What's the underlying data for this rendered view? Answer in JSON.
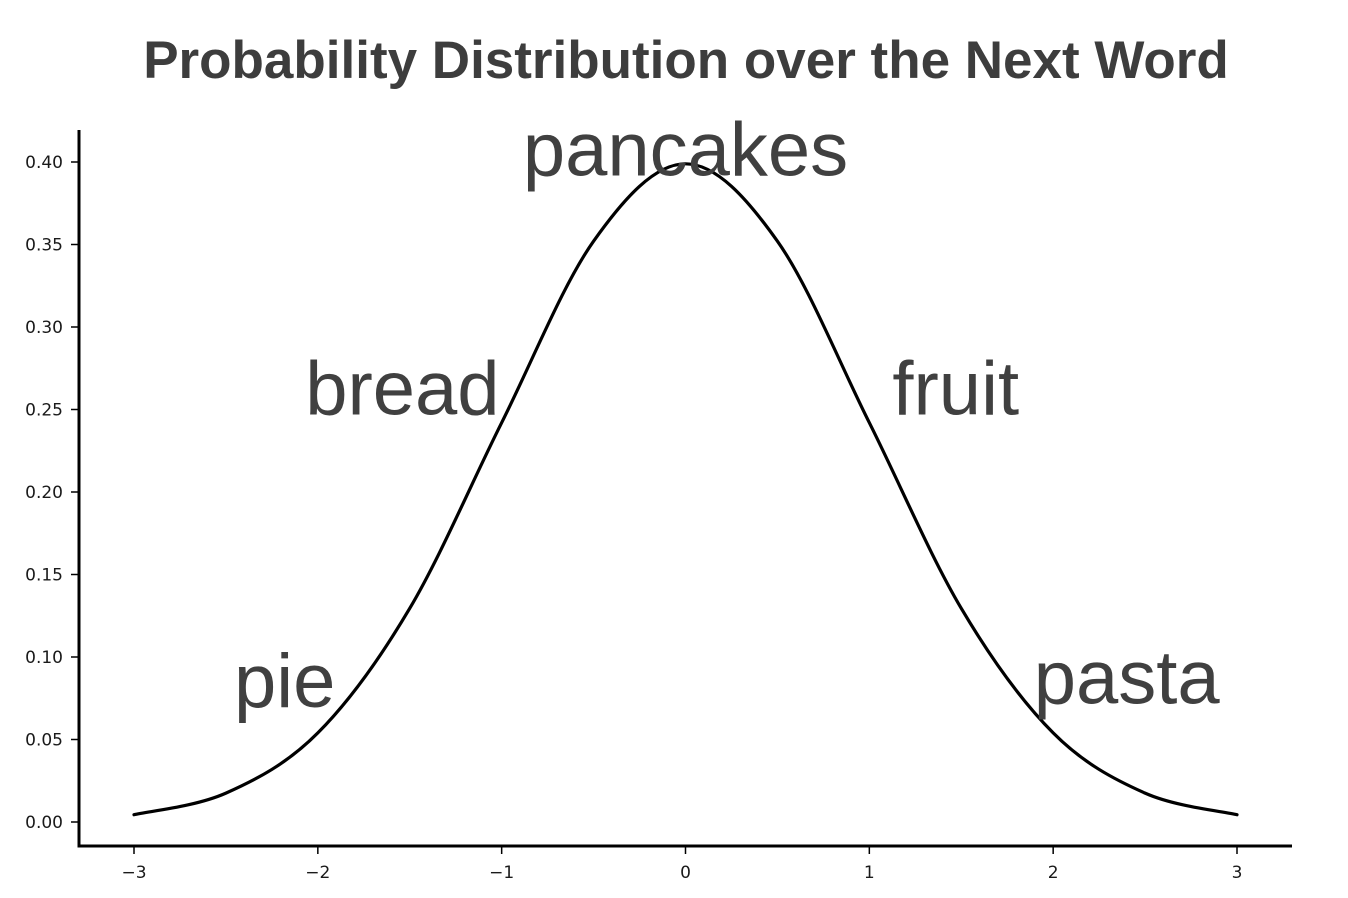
{
  "chart_data": {
    "type": "line",
    "title": "Probability Distribution over the Next Word",
    "xlabel": "",
    "ylabel": "",
    "xlim": [
      -3,
      3
    ],
    "ylim": [
      -0.012,
      0.418
    ],
    "x_ticks": [
      -3,
      -2,
      -1,
      0,
      1,
      2,
      3
    ],
    "x_tick_labels": [
      "−3",
      "−2",
      "−1",
      "0",
      "1",
      "2",
      "3"
    ],
    "y_ticks": [
      0.0,
      0.05,
      0.1,
      0.15,
      0.2,
      0.25,
      0.3,
      0.35,
      0.4
    ],
    "y_tick_labels": [
      "0.00",
      "0.05",
      "0.10",
      "0.15",
      "0.20",
      "0.25",
      "0.30",
      "0.35",
      "0.40"
    ],
    "series": [
      {
        "x": [
          -3.0,
          -2.5,
          -2.0,
          -1.5,
          -1.0,
          -0.5,
          0.0,
          0.5,
          1.0,
          1.5,
          2.0,
          2.5,
          3.0
        ],
        "y": [
          0.0044,
          0.0175,
          0.054,
          0.1295,
          0.242,
          0.352,
          0.3989,
          0.352,
          0.242,
          0.1295,
          0.054,
          0.0175,
          0.0044
        ],
        "color": "#000000"
      }
    ],
    "annotations": [
      {
        "text": "pancakes",
        "x": 0.0,
        "y": 0.404
      },
      {
        "text": "bread",
        "x": -1.54,
        "y": 0.259
      },
      {
        "text": "fruit",
        "x": 1.47,
        "y": 0.259
      },
      {
        "text": "pie",
        "x": -2.18,
        "y": 0.082
      },
      {
        "text": "pasta",
        "x": 2.4,
        "y": 0.084
      }
    ],
    "grid": false
  }
}
